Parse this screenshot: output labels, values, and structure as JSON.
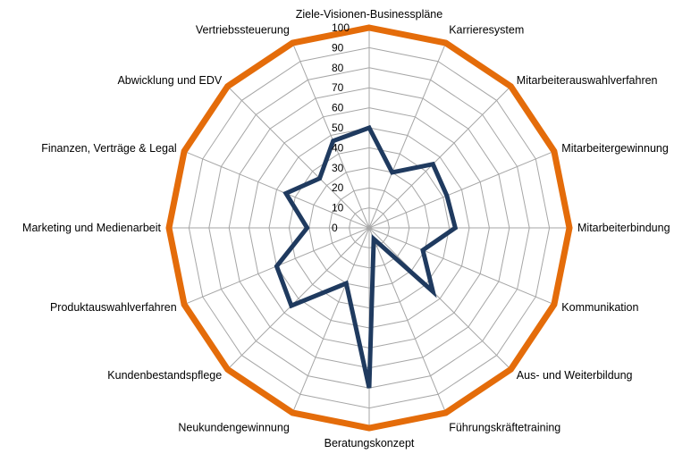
{
  "chart_data": {
    "type": "radar",
    "categories": [
      "Ziele-Visionen-Businesspläne",
      "Karrieresystem",
      "Mitarbeiterauswahlverfahren",
      "Mitarbeitergewinnung",
      "Mitarbeiterbindung",
      "Kommunikation",
      "Aus- und Weiterbildung",
      "Führungskräftetraining",
      "Beratungskonzept",
      "Neukundengewinnung",
      "Kundenbestandspflege",
      "Produktauswahlverfahren",
      "Marketing und Medienarbeit",
      "Finanzen, Verträge & Legal",
      "Abwicklung und EDV",
      "Vertriebssteuerung"
    ],
    "series": [
      {
        "values": [
          100,
          100,
          100,
          100,
          100,
          100,
          100,
          100,
          100,
          100,
          100,
          100,
          100,
          100,
          100,
          100
        ],
        "color": "#E46C0A"
      },
      {
        "values": [
          50,
          30,
          45,
          42,
          43,
          29,
          45,
          6,
          80,
          30,
          55,
          50,
          31,
          45,
          35,
          47
        ],
        "color": "#1F3A5F"
      }
    ],
    "ticks": [
      "0",
      "10",
      "20",
      "30",
      "40",
      "50",
      "60",
      "70",
      "80",
      "90",
      "100"
    ],
    "rlim": [
      0,
      100
    ],
    "grid": true,
    "grid_color": "#a6a6a6",
    "legend": "none"
  }
}
